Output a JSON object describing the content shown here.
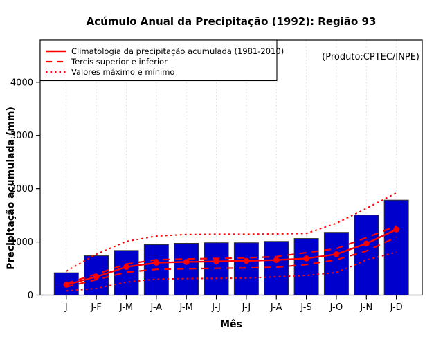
{
  "chart_data": {
    "type": "bar",
    "title": "Acúmulo Anual da Precipitação (1992): Região 93",
    "xlabel": "Mês",
    "ylabel": "Precipitação acumulada (mm)",
    "annotation": "(Produto:CPTEC/INPE)",
    "categories": [
      "J",
      "J-F",
      "J-M",
      "J-A",
      "J-M",
      "J-J",
      "J-J",
      "J-A",
      "J-S",
      "J-O",
      "J-N",
      "J-D"
    ],
    "yticks": [
      0,
      1000,
      2000,
      3000,
      4000
    ],
    "ylim": [
      0,
      4000
    ],
    "grid": "vertical-dotted",
    "legend": {
      "position": "top-left",
      "items": [
        {
          "label": "Climatologia da precipitação acumulada (1981-2010)",
          "style": "solid"
        },
        {
          "label": "Tercis superior e inferior",
          "style": "dashed"
        },
        {
          "label": "Valores máximo e mínimo",
          "style": "dotted"
        }
      ]
    },
    "bars": {
      "values": [
        420,
        740,
        840,
        950,
        975,
        985,
        985,
        1010,
        1065,
        1180,
        1505,
        1785
      ]
    },
    "line_series": [
      {
        "name": "Climatologia da precipitação acumulada (1981-2010)",
        "style": "solid",
        "markers": true,
        "values": [
          195,
          345,
          530,
          610,
          625,
          635,
          645,
          660,
          690,
          770,
          970,
          1235
        ]
      },
      {
        "name": "Tercil superior",
        "style": "dashed",
        "markers": false,
        "values": [
          220,
          395,
          585,
          665,
          680,
          690,
          700,
          725,
          800,
          875,
          1080,
          1300
        ]
      },
      {
        "name": "Tercil inferior",
        "style": "dashed",
        "markers": false,
        "values": [
          155,
          290,
          430,
          485,
          495,
          505,
          510,
          525,
          575,
          665,
          830,
          1090
        ]
      },
      {
        "name": "Valor máximo",
        "style": "dotted",
        "markers": false,
        "values": [
          450,
          770,
          1010,
          1110,
          1140,
          1145,
          1145,
          1150,
          1160,
          1350,
          1630,
          1920
        ]
      },
      {
        "name": "Valor mínimo",
        "style": "dotted",
        "markers": false,
        "values": [
          80,
          125,
          245,
          300,
          310,
          315,
          320,
          345,
          370,
          425,
          660,
          810
        ]
      }
    ],
    "colors": {
      "bar": "#0000CD",
      "bar_border": "#333333",
      "line": "#FF0000",
      "grid": "#D8D8D8",
      "annotation": "#8C8C8C"
    }
  }
}
